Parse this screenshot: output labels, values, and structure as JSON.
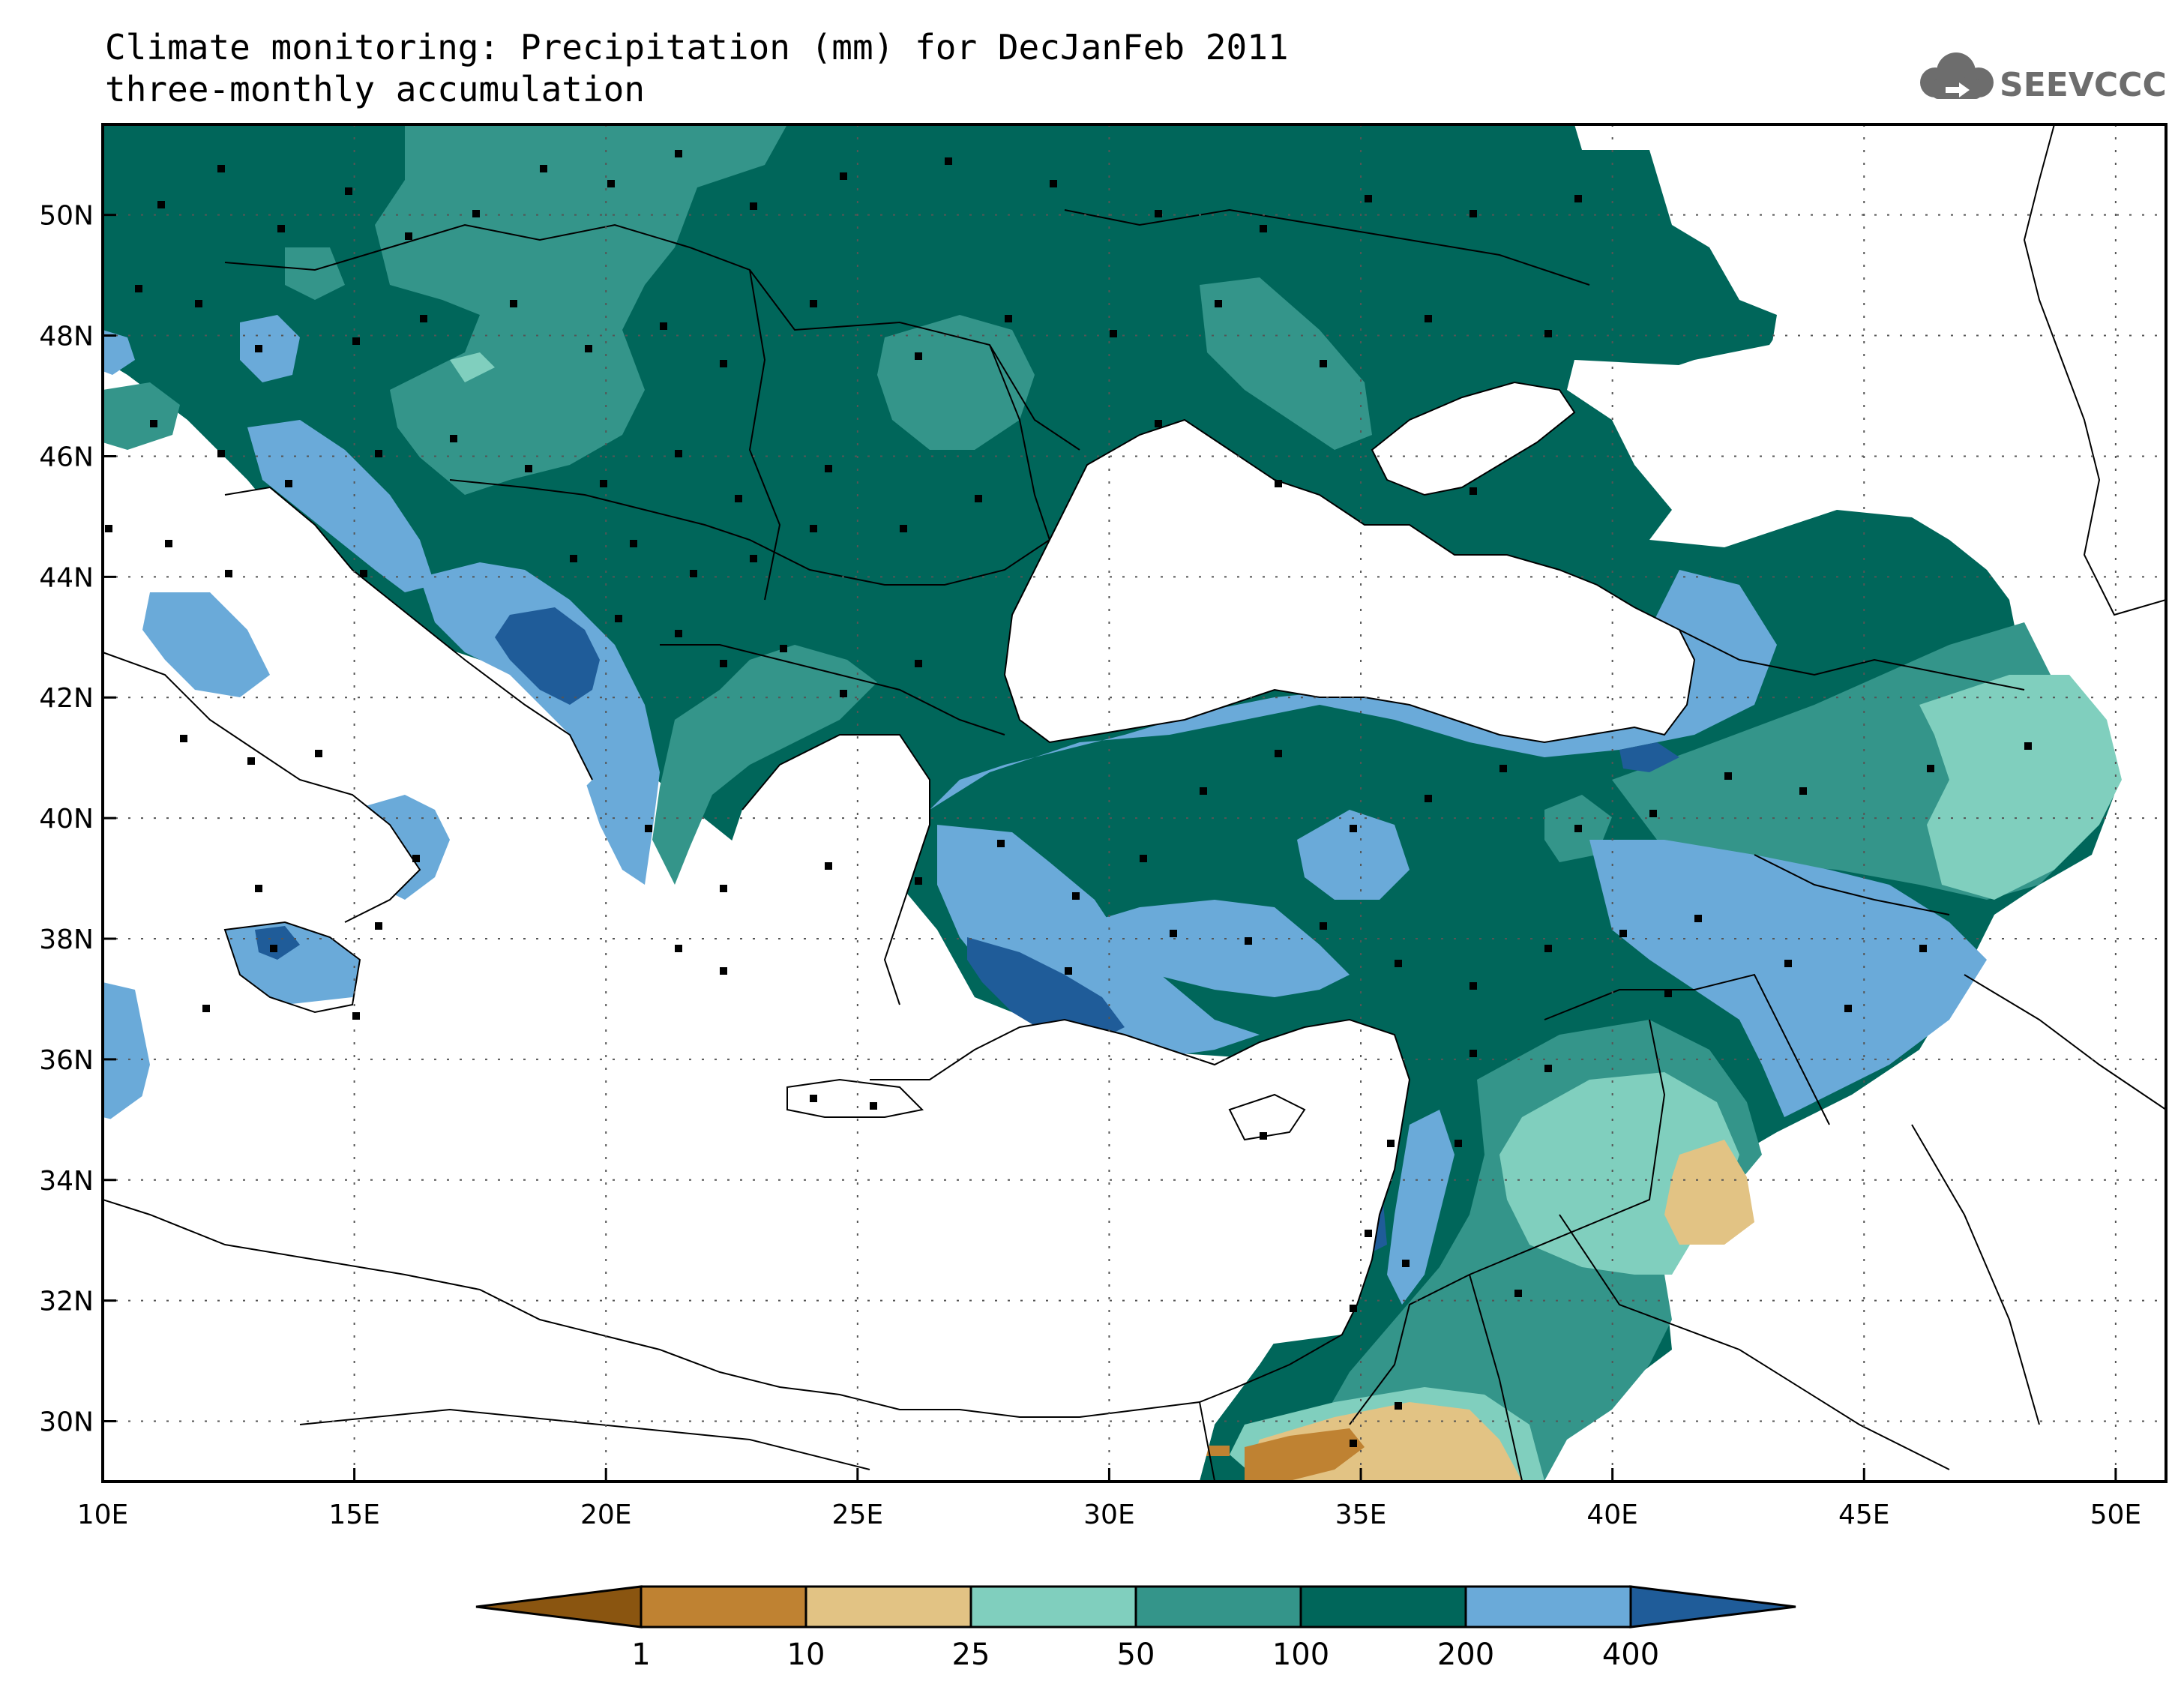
{
  "title": {
    "line1": "Climate monitoring: Precipitation (mm) for DecJanFeb 2011",
    "line2": "three-monthly accumulation"
  },
  "logo": {
    "text": "SEEVCCC",
    "icon": "cloud-icon"
  },
  "map": {
    "lon_range": [
      10,
      51
    ],
    "lat_range": [
      29,
      51.5
    ],
    "lon_ticks": [
      "10E",
      "15E",
      "20E",
      "25E",
      "30E",
      "35E",
      "40E",
      "45E",
      "50E"
    ],
    "lat_ticks": [
      "30N",
      "32N",
      "34N",
      "36N",
      "38N",
      "40N",
      "42N",
      "44N",
      "46N",
      "48N",
      "50N"
    ],
    "grid": true
  },
  "legend": {
    "breaks": [
      "1",
      "10",
      "25",
      "50",
      "100",
      "200",
      "400"
    ],
    "colors": [
      "#8a5510",
      "#bf8232",
      "#e2c384",
      "#80cfbe",
      "#34958a",
      "#00665a",
      "#6aaad9",
      "#1f5c99"
    ]
  }
}
